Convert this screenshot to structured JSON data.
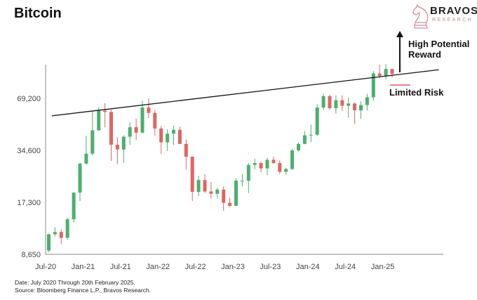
{
  "title": "Bitcoin",
  "logo": {
    "name": "BRAVOS",
    "sub": "RESEARCH",
    "color": "#d98a96"
  },
  "footnote": {
    "date": "Date: July 2020 Through 20th February 2025.",
    "source": "Source: Bloomberg Finance L.P., Bravos Research."
  },
  "annotations": {
    "reward": [
      "High Potential",
      "Reward"
    ],
    "risk": "Limited Risk",
    "risk_color": "#e05a5a"
  },
  "chart_data": {
    "type": "candlestick",
    "yscale": "log",
    "yticks": [
      8650,
      17300,
      34600,
      69200
    ],
    "ytick_labels": [
      "8,650",
      "17,300",
      "34,600",
      "69,200"
    ],
    "xtick_labels": [
      "Jul-20",
      "Jan-21",
      "Jul-21",
      "Jan-22",
      "Jul-22",
      "Jan-23",
      "Jul-23",
      "Jan-24",
      "Jul-24",
      "Jan-25"
    ],
    "colors": {
      "up": "#4caf6e",
      "down": "#e06464",
      "trendline": "#111111"
    },
    "trendline": {
      "start": [
        "Aug-20",
        54800
      ],
      "end": [
        "Oct-25",
        101400
      ]
    },
    "months": [
      "Jul-20",
      "Aug-20",
      "Sep-20",
      "Oct-20",
      "Nov-20",
      "Dec-20",
      "Jan-21",
      "Feb-21",
      "Mar-21",
      "Apr-21",
      "May-21",
      "Jun-21",
      "Jul-21",
      "Aug-21",
      "Sep-21",
      "Oct-21",
      "Nov-21",
      "Dec-21",
      "Jan-22",
      "Feb-22",
      "Mar-22",
      "Apr-22",
      "May-22",
      "Jun-22",
      "Jul-22",
      "Aug-22",
      "Sep-22",
      "Oct-22",
      "Nov-22",
      "Dec-22",
      "Jan-23",
      "Feb-23",
      "Mar-23",
      "Apr-23",
      "May-23",
      "Jun-23",
      "Jul-23",
      "Aug-23",
      "Sep-23",
      "Oct-23",
      "Nov-23",
      "Dec-23",
      "Jan-24",
      "Feb-24",
      "Mar-24",
      "Apr-24",
      "May-24",
      "Jun-24",
      "Jul-24",
      "Aug-24",
      "Sep-24",
      "Oct-24",
      "Nov-24",
      "Dec-24",
      "Jan-25",
      "Feb-25"
    ],
    "ohlc": [
      [
        9100,
        11400,
        8900,
        11300
      ],
      [
        11300,
        12400,
        11000,
        11650
      ],
      [
        11650,
        12050,
        9900,
        10780
      ],
      [
        10780,
        14100,
        10500,
        13800
      ],
      [
        13800,
        19800,
        13200,
        19700
      ],
      [
        19700,
        29300,
        17600,
        29000
      ],
      [
        29000,
        42000,
        28700,
        33100
      ],
      [
        33100,
        58300,
        32300,
        45200
      ],
      [
        45200,
        61700,
        45000,
        58800
      ],
      [
        58800,
        64800,
        47000,
        57700
      ],
      [
        57700,
        59500,
        30000,
        37300
      ],
      [
        37300,
        41300,
        28800,
        35000
      ],
      [
        35000,
        42300,
        29300,
        41500
      ],
      [
        41500,
        50500,
        37300,
        47100
      ],
      [
        47100,
        52900,
        39600,
        43800
      ],
      [
        43800,
        67000,
        43300,
        61300
      ],
      [
        61300,
        69000,
        53300,
        57000
      ],
      [
        57000,
        59000,
        42000,
        46300
      ],
      [
        46300,
        48000,
        33000,
        38500
      ],
      [
        38500,
        45800,
        34300,
        43200
      ],
      [
        43200,
        48200,
        37200,
        45500
      ],
      [
        45500,
        47400,
        37700,
        37700
      ],
      [
        37700,
        40000,
        26700,
        31800
      ],
      [
        31800,
        31900,
        17600,
        19900
      ],
      [
        19900,
        24600,
        18800,
        23300
      ],
      [
        23300,
        25200,
        19600,
        20000
      ],
      [
        20000,
        22700,
        18200,
        19400
      ],
      [
        19400,
        21000,
        18200,
        20500
      ],
      [
        20500,
        21400,
        15500,
        17200
      ],
      [
        17200,
        18400,
        16300,
        16500
      ],
      [
        16500,
        23900,
        16500,
        23100
      ],
      [
        23100,
        25300,
        21400,
        23100
      ],
      [
        23100,
        29200,
        19600,
        28500
      ],
      [
        28500,
        31000,
        26900,
        29200
      ],
      [
        29200,
        29800,
        25800,
        27200
      ],
      [
        27200,
        31400,
        24800,
        30500
      ],
      [
        30500,
        31800,
        29000,
        29200
      ],
      [
        29200,
        30200,
        25200,
        26000
      ],
      [
        26000,
        27500,
        24900,
        27000
      ],
      [
        27000,
        35200,
        26600,
        34600
      ],
      [
        34600,
        38400,
        34100,
        37700
      ],
      [
        37700,
        44700,
        37600,
        42300
      ],
      [
        42300,
        48900,
        38600,
        42600
      ],
      [
        42600,
        63900,
        41900,
        61200
      ],
      [
        61200,
        73800,
        59300,
        71300
      ],
      [
        71300,
        72700,
        59600,
        60700
      ],
      [
        60700,
        72000,
        56500,
        67500
      ],
      [
        67500,
        72000,
        58500,
        62700
      ],
      [
        62700,
        70000,
        53500,
        64600
      ],
      [
        64600,
        65600,
        49000,
        59000
      ],
      [
        59000,
        66500,
        52600,
        63300
      ],
      [
        63300,
        73600,
        58900,
        70200
      ],
      [
        70200,
        99600,
        66800,
        96400
      ],
      [
        96400,
        108300,
        90500,
        93400
      ],
      [
        93400,
        109300,
        89200,
        102400
      ],
      [
        102400,
        102700,
        91200,
        96000
      ]
    ]
  }
}
